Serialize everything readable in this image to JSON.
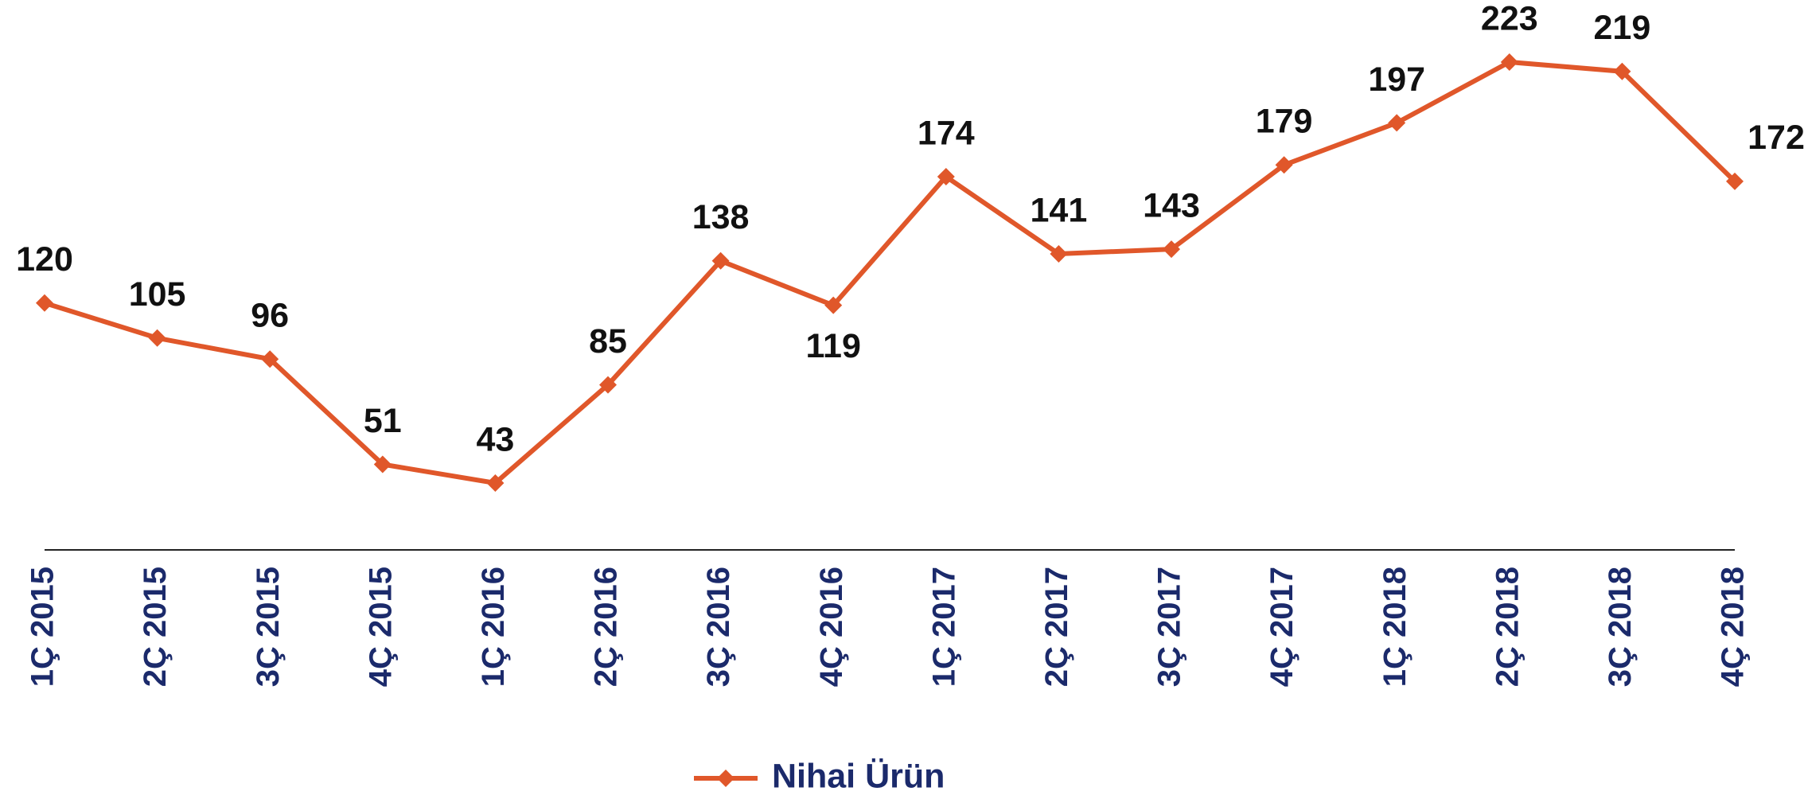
{
  "chart_data": {
    "type": "line",
    "categories": [
      "1Ç 2015",
      "2Ç 2015",
      "3Ç 2015",
      "4Ç 2015",
      "1Ç 2016",
      "2Ç 2016",
      "3Ç 2016",
      "4Ç 2016",
      "1Ç 2017",
      "2Ç 2017",
      "3Ç 2017",
      "4Ç 2017",
      "1Ç 2018",
      "2Ç 2018",
      "3Ç 2018",
      "4Ç 2018"
    ],
    "series": [
      {
        "name": "Nihai Ürün",
        "color": "#e0572a",
        "values": [
          120,
          105,
          96,
          51,
          43,
          85,
          138,
          119,
          174,
          141,
          143,
          179,
          197,
          223,
          219,
          172
        ]
      }
    ],
    "legend": "bottom"
  }
}
